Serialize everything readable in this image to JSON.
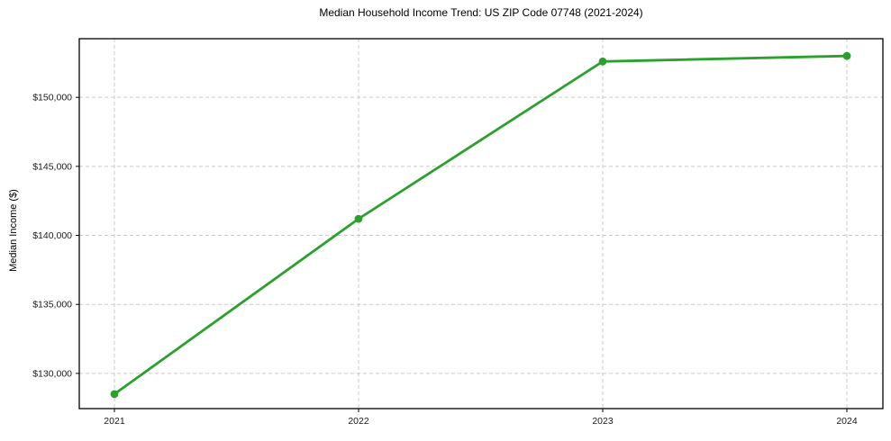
{
  "chart_data": {
    "type": "line",
    "title": "Median Household Income Trend: US ZIP Code 07748 (2021-2024)",
    "xlabel": "",
    "ylabel": "Median Income ($)",
    "categories": [
      "2021",
      "2022",
      "2023",
      "2024"
    ],
    "values": [
      128500,
      141200,
      152600,
      153000
    ],
    "yticks": [
      {
        "value": 130000,
        "label": "$130,000"
      },
      {
        "value": 135000,
        "label": "$135,000"
      },
      {
        "value": 140000,
        "label": "$140,000"
      },
      {
        "value": 145000,
        "label": "$145,000"
      },
      {
        "value": 150000,
        "label": "$150,000"
      }
    ],
    "ylim": [
      127450,
      154250
    ],
    "grid": "dashed-both-directions",
    "legend_position": "none",
    "marker": "circle",
    "colors": {
      "line": "#2ca02c",
      "marker": "#2ca02c",
      "grid": "#c9c9c9",
      "spine": "#000000",
      "tick_text": "#1a1a1a",
      "background": "#ffffff"
    }
  }
}
